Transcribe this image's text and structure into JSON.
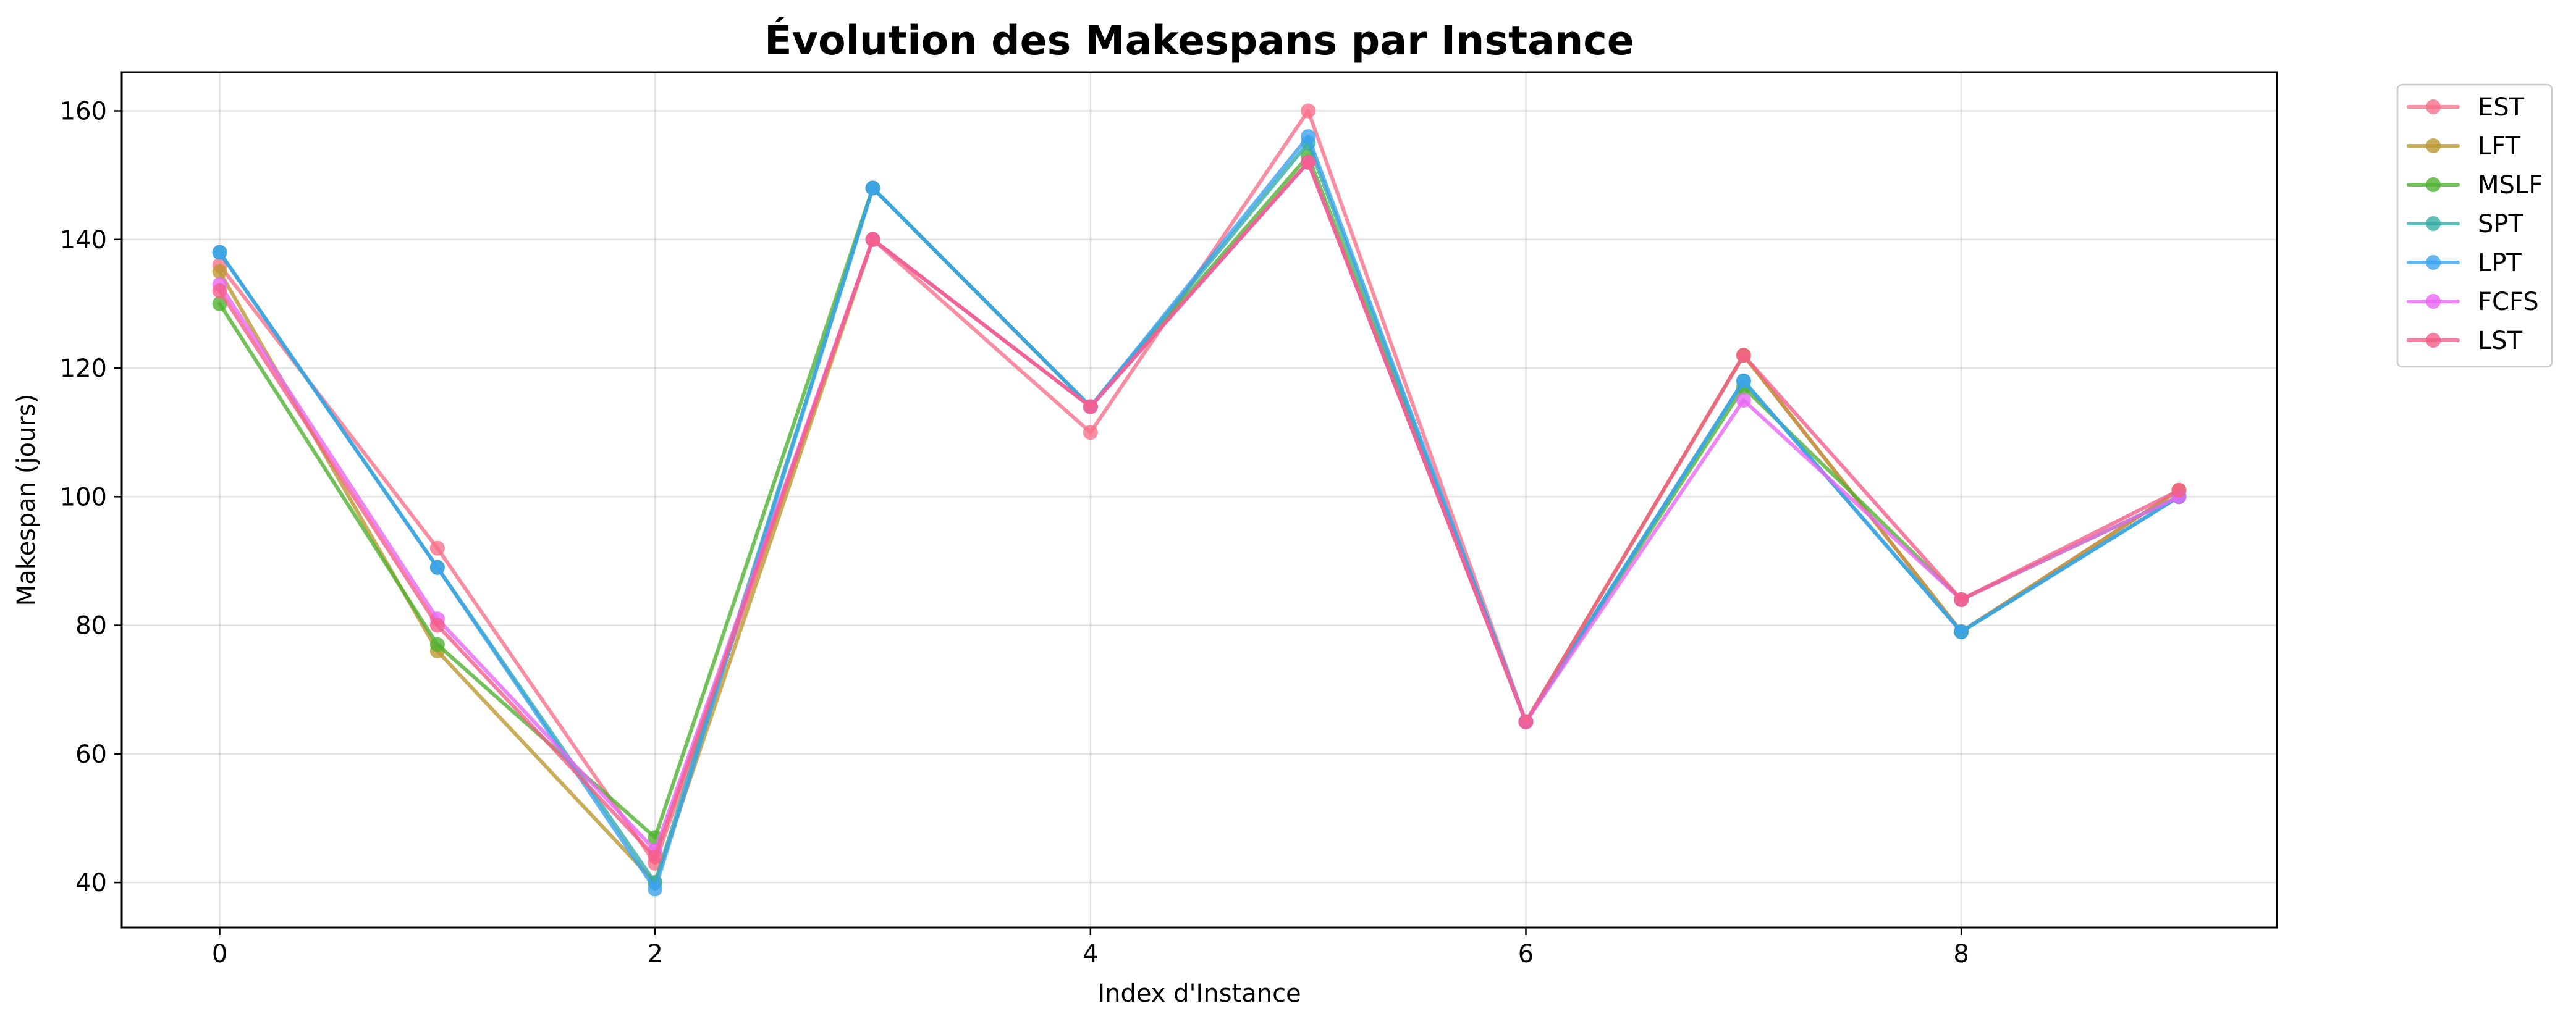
{
  "chart_data": {
    "type": "line",
    "title": "Évolution des Makespans par Instance",
    "xlabel": "Index d'Instance",
    "ylabel": "Makespan (jours)",
    "x": [
      0,
      1,
      2,
      3,
      4,
      5,
      6,
      7,
      8,
      9
    ],
    "xlim": [
      -0.45,
      9.45
    ],
    "ylim": [
      33,
      166
    ],
    "xticks": [
      0,
      2,
      4,
      6,
      8
    ],
    "yticks": [
      40,
      60,
      80,
      100,
      120,
      140,
      160
    ],
    "grid": true,
    "legend_position": "outside-top-right",
    "series": [
      {
        "name": "EST",
        "color": "#f77189",
        "values": [
          136,
          92,
          43,
          140,
          110,
          160,
          65,
          122,
          79,
          101
        ]
      },
      {
        "name": "LFT",
        "color": "#bb9832",
        "values": [
          135,
          76,
          40,
          140,
          114,
          152,
          65,
          122,
          79,
          101
        ]
      },
      {
        "name": "MSLF",
        "color": "#50b131",
        "values": [
          130,
          77,
          47,
          148,
          114,
          153,
          65,
          117,
          84,
          100
        ]
      },
      {
        "name": "SPT",
        "color": "#36ada4",
        "values": [
          138,
          89,
          40,
          148,
          114,
          155,
          65,
          118,
          79,
          100
        ]
      },
      {
        "name": "LPT",
        "color": "#3ba3ec",
        "values": [
          138,
          89,
          39,
          148,
          114,
          156,
          65,
          118,
          79,
          100
        ]
      },
      {
        "name": "FCFS",
        "color": "#e866f4",
        "values": [
          133,
          81,
          45,
          140,
          114,
          152,
          65,
          115,
          84,
          100
        ]
      },
      {
        "name": "LST",
        "color": "#f45f8a",
        "values": [
          132,
          80,
          44,
          140,
          114,
          152,
          65,
          122,
          84,
          101
        ]
      }
    ]
  }
}
